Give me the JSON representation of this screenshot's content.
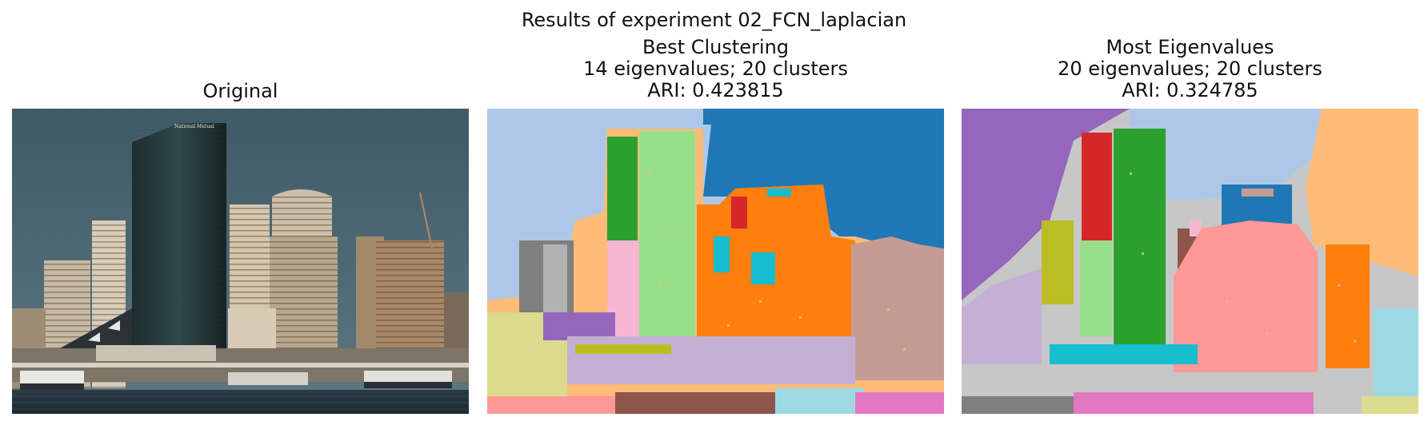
{
  "figure": {
    "suptitle": "Results of experiment 02_FCN_laplacian"
  },
  "panels": [
    {
      "title_lines": [
        "Original"
      ]
    },
    {
      "title_lines": [
        "Best Clustering",
        "14 eigenvalues; 20 clusters",
        "ARI: 0.423815"
      ]
    },
    {
      "title_lines": [
        "Most Eigenvalues",
        "20 eigenvalues; 20 clusters",
        "ARI: 0.324785"
      ]
    }
  ],
  "original_image": {
    "sign_text": "National Mutual"
  },
  "colors": {
    "tab20": [
      "#1f77b4",
      "#aec7e8",
      "#ff7f0e",
      "#ffbb78",
      "#2ca02c",
      "#98df8a",
      "#d62728",
      "#ff9896",
      "#9467bd",
      "#c5b0d5",
      "#8c564b",
      "#c49c94",
      "#e377c2",
      "#f7b6d2",
      "#7f7f7f",
      "#c7c7c7",
      "#bcbd22",
      "#dbdb8d",
      "#17becf",
      "#9edae5"
    ]
  }
}
